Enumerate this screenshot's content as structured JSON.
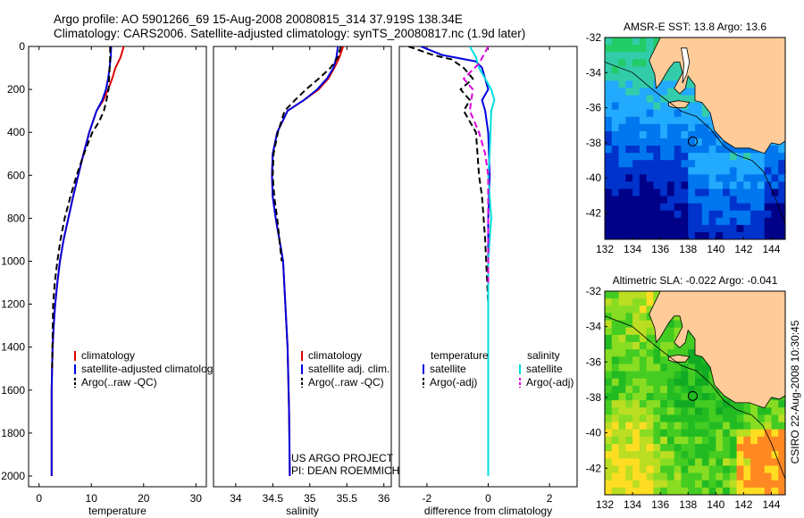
{
  "header": {
    "line1": "Argo profile: AO 5901266_69 15-Aug-2008 20080815_314 37.919S 138.34E",
    "line2": "Climatology: CARS2006. Satellite-adjusted climatology: synTS_20080817.nc (1.9d later)"
  },
  "credits": {
    "project": "US ARGO PROJECT",
    "pi": "PI: DEAN ROEMMICH",
    "side_stamp": "CSIRO 22-Aug-2008 10:30:45"
  },
  "colors": {
    "climatology": "#dd0000",
    "satellite": "#0000dd",
    "argo": "#000000",
    "satellite_salinity": "#00dddd",
    "argo_salinity_adj": "#dd00dd",
    "land": "#ffcc99"
  },
  "chart_data": [
    {
      "type": "line",
      "id": "temperature",
      "xlabel": "temperature",
      "ylabel": "",
      "xlim": [
        -2,
        32
      ],
      "ylim": [
        2050,
        0
      ],
      "xticks": [
        0,
        10,
        20,
        30
      ],
      "yticks": [
        0,
        200,
        400,
        600,
        800,
        1000,
        1200,
        1400,
        1600,
        1800,
        2000
      ],
      "legend_position": "lower-center",
      "series": [
        {
          "name": "climatology",
          "color": "#dd0000",
          "style": "solid",
          "x": [
            16.2,
            15.6,
            14.6,
            14.0,
            13.2,
            12.3,
            11.0,
            9.6,
            8.5,
            7.5,
            6.5,
            5.6,
            4.7,
            4.0,
            3.5,
            3.1,
            2.8,
            2.6,
            2.5,
            2.4,
            2.4,
            2.4
          ],
          "y": [
            0,
            50,
            100,
            150,
            200,
            250,
            300,
            400,
            500,
            600,
            700,
            800,
            900,
            1000,
            1100,
            1200,
            1300,
            1400,
            1500,
            1600,
            1800,
            2000
          ]
        },
        {
          "name": "satellite-adjusted climatology",
          "color": "#0000dd",
          "style": "solid",
          "x": [
            13.8,
            13.7,
            13.5,
            13.2,
            12.8,
            12.1,
            11.0,
            9.6,
            8.5,
            7.5,
            6.5,
            5.6,
            4.7,
            4.0,
            3.5,
            3.1,
            2.8,
            2.6,
            2.5,
            2.4,
            2.4,
            2.4
          ],
          "y": [
            0,
            50,
            100,
            150,
            200,
            250,
            300,
            400,
            500,
            600,
            700,
            800,
            900,
            1000,
            1100,
            1200,
            1300,
            1400,
            1500,
            1600,
            1800,
            2000
          ]
        },
        {
          "name": "Argo(..raw -QC)",
          "color": "#000000",
          "style": "dashed",
          "x": [
            13.6,
            13.6,
            13.5,
            13.4,
            13.3,
            12.9,
            12.4,
            11.5,
            10.2,
            8.6,
            7.2,
            6.0,
            4.9,
            4.1,
            3.5,
            3.0,
            2.7,
            2.5
          ],
          "y": [
            0,
            50,
            100,
            150,
            200,
            250,
            300,
            350,
            400,
            500,
            600,
            700,
            800,
            900,
            1000,
            1100,
            1200,
            1500
          ]
        }
      ]
    },
    {
      "type": "line",
      "id": "salinity",
      "xlabel": "salinity",
      "ylabel": "",
      "xlim": [
        33.7,
        36.1
      ],
      "ylim": [
        2050,
        0
      ],
      "xticks": [
        34,
        34.5,
        35,
        35.5,
        36
      ],
      "legend_position": "lower-center",
      "series": [
        {
          "name": "climatology",
          "color": "#dd0000",
          "style": "solid",
          "x": [
            35.45,
            35.4,
            35.33,
            35.25,
            35.12,
            34.92,
            34.7,
            34.56,
            34.5,
            34.49,
            34.5,
            34.54,
            34.59,
            34.64,
            34.67,
            34.7,
            34.72,
            34.73
          ],
          "y": [
            0,
            50,
            100,
            150,
            200,
            250,
            300,
            400,
            500,
            600,
            700,
            800,
            900,
            1000,
            1200,
            1400,
            1700,
            2000
          ]
        },
        {
          "name": "satellite adj. clim.",
          "color": "#0000dd",
          "style": "solid",
          "x": [
            35.38,
            35.36,
            35.32,
            35.23,
            35.1,
            34.92,
            34.7,
            34.56,
            34.5,
            34.49,
            34.5,
            34.54,
            34.59,
            34.64,
            34.67,
            34.7,
            34.72,
            34.73
          ],
          "y": [
            0,
            50,
            100,
            150,
            200,
            250,
            300,
            400,
            500,
            600,
            700,
            800,
            900,
            1000,
            1200,
            1400,
            1700,
            2000
          ]
        },
        {
          "name": "Argo(..raw -QC)",
          "color": "#000000",
          "style": "dashed",
          "x": [
            35.42,
            35.38,
            35.28,
            35.12,
            34.95,
            34.8,
            34.66,
            34.57,
            34.51,
            34.5,
            34.52,
            34.56,
            34.62
          ],
          "y": [
            0,
            50,
            100,
            150,
            200,
            250,
            300,
            400,
            500,
            600,
            700,
            800,
            1000
          ]
        }
      ]
    },
    {
      "type": "line",
      "id": "difference",
      "xlabel": "difference from climatology",
      "ylabel": "",
      "xlim": [
        -2.9,
        2.9
      ],
      "ylim": [
        2050,
        0
      ],
      "xticks": [
        -2,
        0,
        2
      ],
      "legend_groups": [
        "temperature",
        "salinity"
      ],
      "legend_position": "lower-center",
      "series": [
        {
          "name": "satellite",
          "group": "temperature",
          "color": "#0000dd",
          "style": "solid",
          "x": [
            -2.2,
            -1.5,
            -0.4,
            -0.2,
            -0.1,
            0.0,
            -0.2,
            -0.1,
            0.0,
            0.05,
            0.0,
            0.0,
            0.0,
            0.0,
            0.0
          ],
          "y": [
            0,
            40,
            70,
            100,
            150,
            200,
            250,
            300,
            400,
            600,
            800,
            1000,
            1400,
            1800,
            2000
          ]
        },
        {
          "name": "Argo(-adj)",
          "group": "temperature",
          "color": "#000000",
          "style": "dashed",
          "x": [
            -2.6,
            -1.8,
            -1.2,
            -0.8,
            -0.5,
            -0.9,
            -0.6,
            -0.8,
            -0.4,
            -0.3,
            -0.2,
            -0.1,
            0.0
          ],
          "y": [
            0,
            40,
            60,
            100,
            150,
            200,
            250,
            300,
            400,
            600,
            700,
            900,
            1200
          ]
        },
        {
          "name": "satellite",
          "group": "salinity",
          "color": "#00dddd",
          "style": "solid",
          "x": [
            -0.6,
            -0.4,
            -0.3,
            -0.1,
            0.1,
            0.2,
            0.1,
            0.05,
            0.0,
            0.1,
            0.0,
            0.0,
            0.0
          ],
          "y": [
            0,
            50,
            100,
            150,
            200,
            250,
            300,
            500,
            600,
            800,
            1000,
            1400,
            2000
          ]
        },
        {
          "name": "Argo(-adj)",
          "group": "salinity",
          "color": "#dd00dd",
          "style": "dashed",
          "x": [
            0.0,
            -0.3,
            -0.8,
            -0.5,
            -0.6,
            -0.3,
            -0.1,
            0.0,
            0.0,
            0.0,
            0.0
          ],
          "y": [
            0,
            80,
            150,
            200,
            300,
            400,
            500,
            600,
            800,
            1000,
            1100
          ]
        }
      ]
    },
    {
      "type": "heatmap",
      "id": "sst_map",
      "title": "AMSR-E SST: 13.8 Argo: 13.6",
      "xlim": [
        132,
        145
      ],
      "ylim": [
        -43.5,
        -32
      ],
      "xticks": [
        132,
        134,
        136,
        138,
        140,
        142,
        144
      ],
      "yticks": [
        -32,
        -34,
        -36,
        -38,
        -40,
        -42
      ],
      "profile_location": {
        "lon": 138.34,
        "lat": -37.919
      },
      "land_color": "#ffcc99",
      "palette": [
        "#000088",
        "#0033cc",
        "#0077ee",
        "#22aaff",
        "#33ccaa",
        "#22cc66"
      ]
    },
    {
      "type": "heatmap",
      "id": "sla_map",
      "title": "Altimetric SLA: -0.022 Argo: -0.041",
      "xlim": [
        132,
        145
      ],
      "ylim": [
        -43.5,
        -32
      ],
      "xticks": [
        132,
        134,
        136,
        138,
        140,
        142,
        144
      ],
      "yticks": [
        -32,
        -34,
        -36,
        -38,
        -40,
        -42
      ],
      "profile_location": {
        "lon": 138.34,
        "lat": -37.919
      },
      "land_color": "#ffcc99",
      "palette": [
        "#11aa22",
        "#22bb22",
        "#44cc22",
        "#88dd22",
        "#bbdd22",
        "#ffdd22",
        "#ff8822"
      ]
    }
  ]
}
